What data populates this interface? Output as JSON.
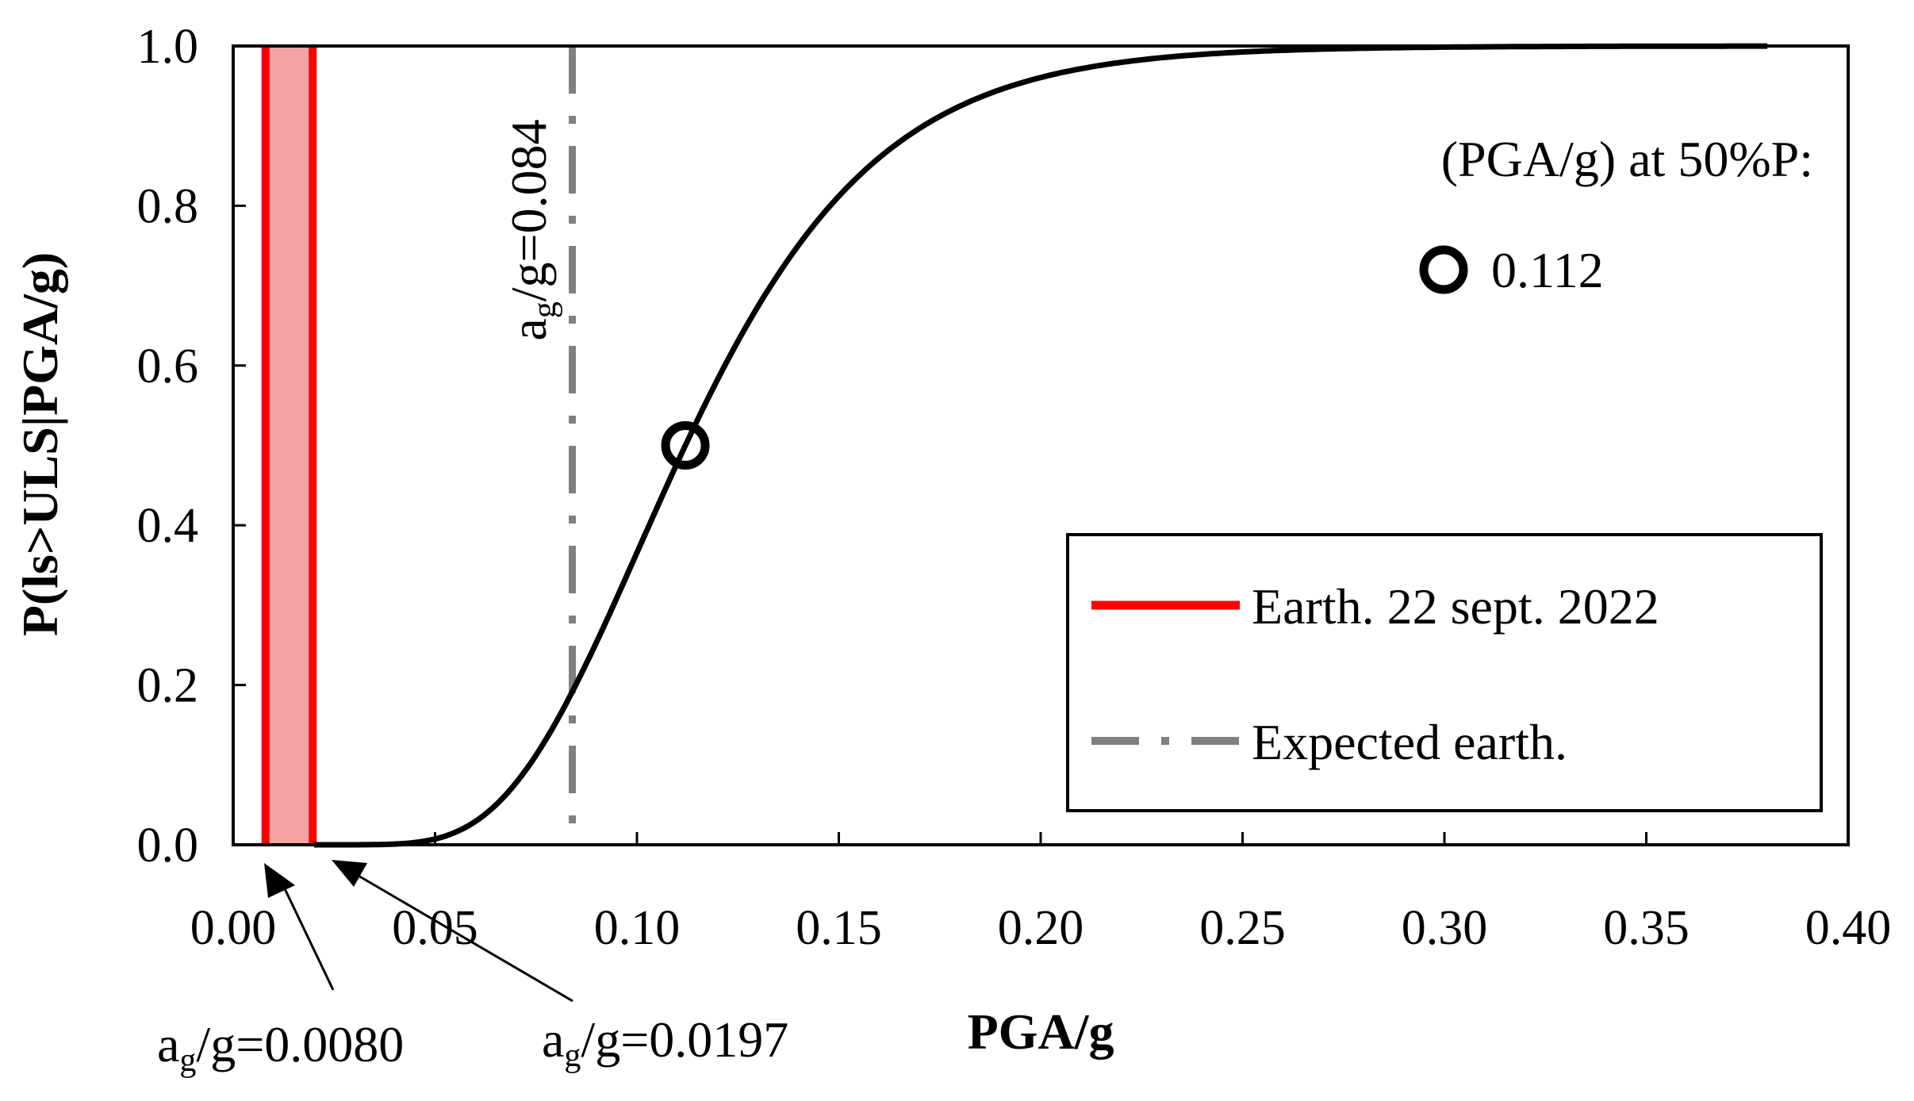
{
  "chart_data": {
    "type": "line",
    "title": "",
    "xlabel": "PGA/g",
    "ylabel": "P(ls>ULS|PGA/g)",
    "xlim": [
      0,
      0.4
    ],
    "ylim": [
      0,
      1
    ],
    "x_ticks": [
      "0.00",
      "0.05",
      "0.10",
      "0.15",
      "0.20",
      "0.25",
      "0.30",
      "0.35",
      "0.40"
    ],
    "y_ticks": [
      "0.0",
      "0.2",
      "0.4",
      "0.6",
      "0.8",
      "1.0"
    ],
    "fragility_curve": {
      "distribution": "lognormal",
      "median": 0.112,
      "dispersion": 0.33,
      "x_end": 0.38
    },
    "median_point": {
      "x": 0.112,
      "y": 0.5
    },
    "event_band": {
      "x_min": 0.008,
      "x_max": 0.0197,
      "color": "#ff0000",
      "fill": "#f4a3a3"
    },
    "expected_line": {
      "x": 0.084,
      "color": "#808080"
    },
    "annotations": {
      "expected": {
        "prefix": "a",
        "sub": "g",
        "suffix": "/g=0.084"
      },
      "band_low": {
        "prefix": "a",
        "sub": "g",
        "suffix": "/g=0.0080"
      },
      "band_high": {
        "prefix": "a",
        "sub": "g",
        "suffix": "/g=0.0197"
      },
      "median_title": "(PGA/g) at 50%P:",
      "median_value": "0.112"
    },
    "legend": [
      {
        "label": "Earth. 22 sept. 2022",
        "style": "solid",
        "color": "#ff0000"
      },
      {
        "label": "Expected earth.",
        "style": "dash-dot",
        "color": "#808080"
      }
    ]
  }
}
